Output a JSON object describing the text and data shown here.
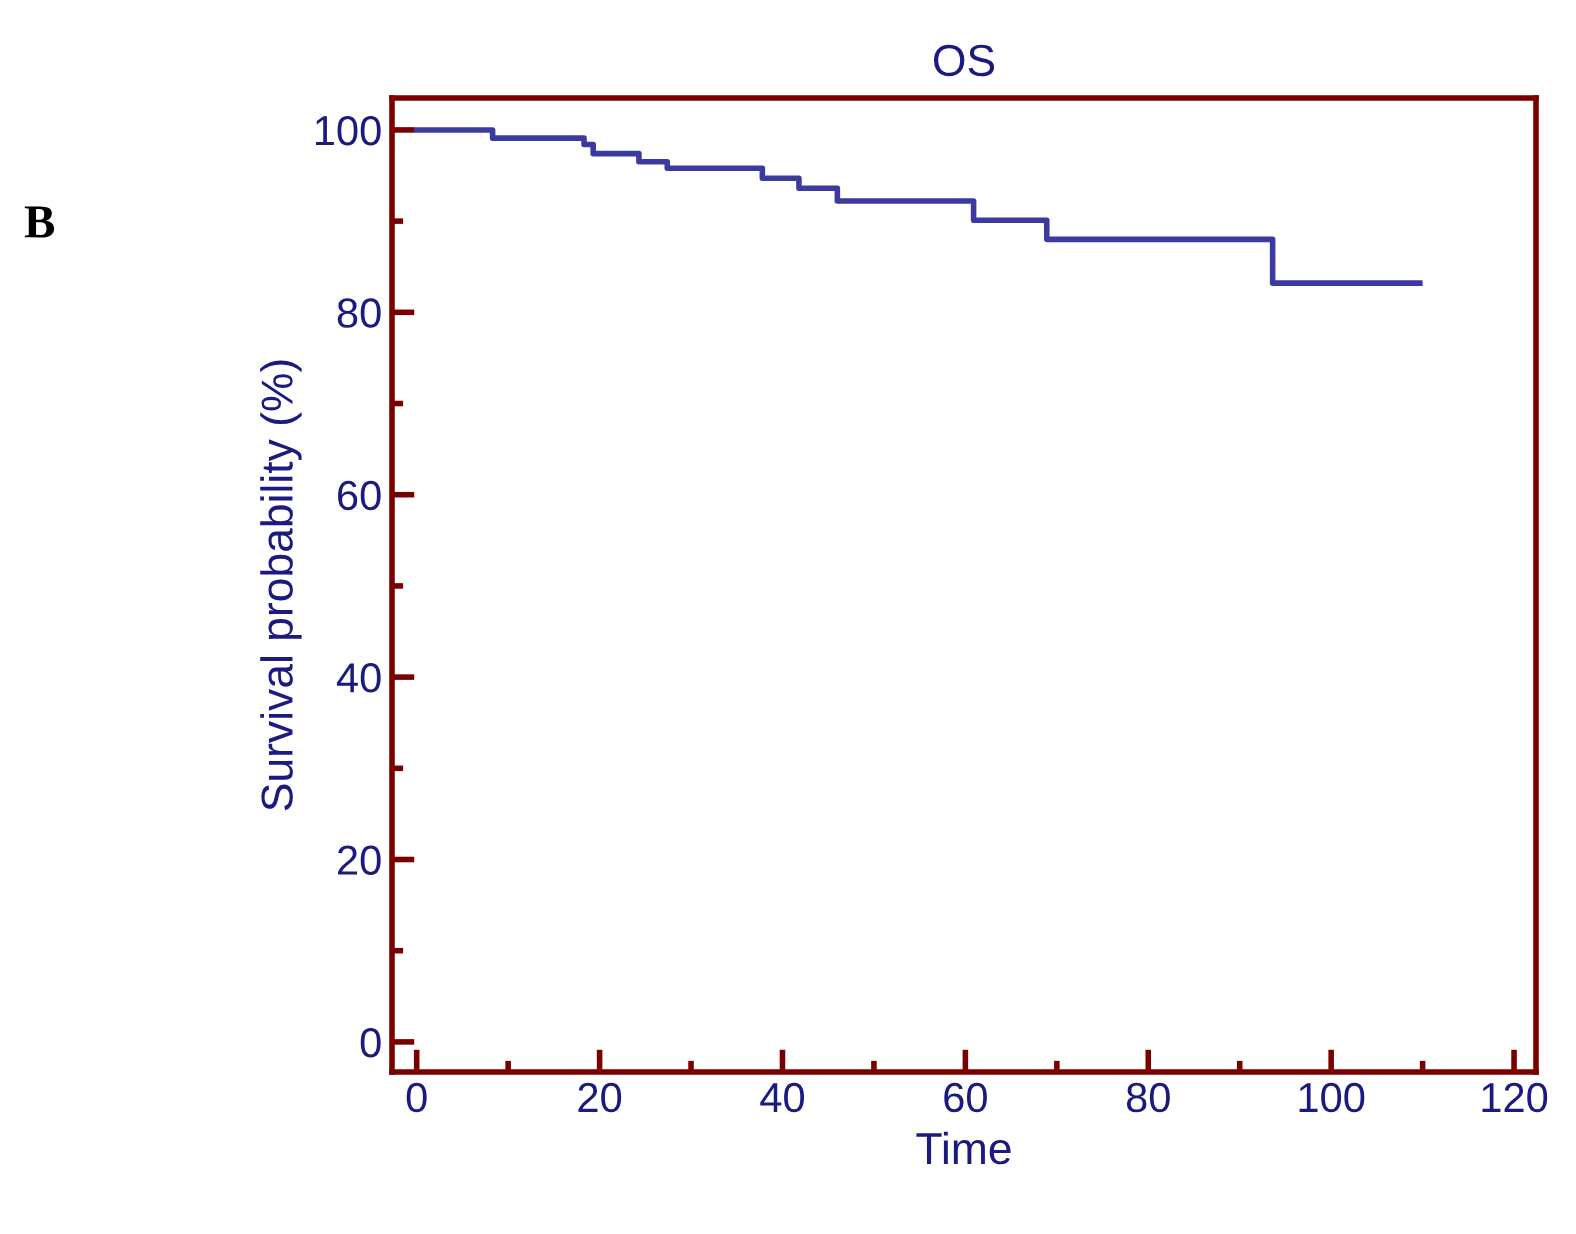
{
  "chart_data": {
    "type": "step",
    "title": "OS",
    "xlabel": "Time",
    "ylabel": "Survival probability (%)",
    "annotations": [
      "B"
    ],
    "x": [
      0,
      8.3,
      18.3,
      19.3,
      24.3,
      27.4,
      37.8,
      41.8,
      46.0,
      60.9,
      68.9,
      93.6,
      109.7
    ],
    "series": [
      {
        "color": "#3a3aa0",
        "values": [
          100,
          99.1,
          98.4,
          97.4,
          96.5,
          95.8,
          94.7,
          93.6,
          92.2,
          90.1,
          88.0,
          83.2,
          83.2
        ]
      }
    ],
    "xlim": [
      -2.7,
      122.4
    ],
    "ylim": [
      -3.3,
      103.5
    ],
    "xticks": [
      0,
      {
        "value": 10,
        "label": null
      },
      20,
      {
        "value": 30,
        "label": null
      },
      40,
      {
        "value": 50,
        "label": null
      },
      60,
      {
        "value": 70,
        "label": null
      },
      80,
      {
        "value": 90,
        "label": null
      },
      100,
      {
        "value": 110,
        "label": null
      },
      120
    ],
    "yticks": [
      0,
      {
        "value": 10,
        "label": null
      },
      20,
      {
        "value": 30,
        "label": null
      },
      40,
      {
        "value": 50,
        "label": null
      },
      60,
      {
        "value": 70,
        "label": null
      },
      80,
      {
        "value": 90,
        "label": null
      },
      100
    ],
    "grid": false,
    "legend": false
  }
}
